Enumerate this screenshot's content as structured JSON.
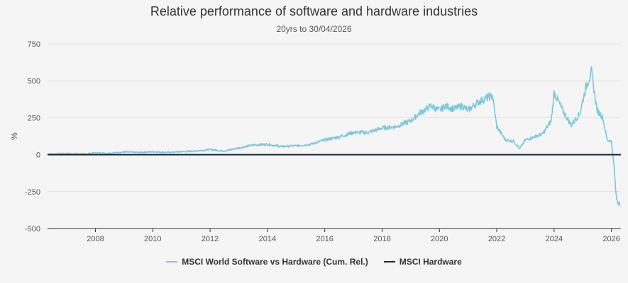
{
  "chart_data": {
    "type": "line",
    "title": "Relative performance of software and hardware industries",
    "subtitle": "20yrs to 30/04/2026",
    "ylabel": "%",
    "xlabel": "",
    "xlim": [
      2006.33,
      2026.33
    ],
    "ylim": [
      -500,
      750
    ],
    "yticks": [
      -500,
      -250,
      0,
      250,
      500,
      750
    ],
    "xticks": [
      2008,
      2010,
      2012,
      2014,
      2016,
      2018,
      2020,
      2022,
      2024,
      2026
    ],
    "grid": "horizontal",
    "legend": "bottom",
    "series": [
      {
        "name": "MSCI World Software vs Hardware (Cum. Rel.)",
        "color": "#7dc8dc",
        "x": [
          2006.33,
          2007.0,
          2007.6,
          2008.0,
          2008.5,
          2009.0,
          2009.5,
          2010.0,
          2010.5,
          2011.0,
          2011.5,
          2012.0,
          2012.5,
          2013.0,
          2013.5,
          2014.0,
          2014.5,
          2015.0,
          2015.5,
          2016.0,
          2016.5,
          2017.0,
          2017.5,
          2018.0,
          2018.5,
          2019.0,
          2019.3,
          2019.7,
          2020.0,
          2020.2,
          2020.5,
          2020.8,
          2021.0,
          2021.3,
          2021.6,
          2021.85,
          2022.0,
          2022.3,
          2022.6,
          2022.8,
          2023.0,
          2023.3,
          2023.6,
          2023.9,
          2024.0,
          2024.3,
          2024.6,
          2024.9,
          2025.1,
          2025.3,
          2025.5,
          2025.7,
          2025.85,
          2026.0,
          2026.1,
          2026.15,
          2026.2,
          2026.3
        ],
        "y": [
          5,
          8,
          5,
          12,
          10,
          18,
          15,
          20,
          15,
          20,
          25,
          35,
          25,
          45,
          65,
          70,
          55,
          60,
          70,
          100,
          120,
          150,
          150,
          180,
          190,
          230,
          280,
          330,
          300,
          330,
          310,
          330,
          300,
          350,
          380,
          400,
          190,
          100,
          90,
          40,
          100,
          120,
          140,
          230,
          420,
          300,
          200,
          280,
          450,
          560,
          300,
          250,
          100,
          90,
          -100,
          -250,
          -300,
          -350
        ]
      },
      {
        "name": "MSCI Hardware",
        "color": "#1b2a38",
        "x": [
          2006.33,
          2026.33
        ],
        "y": [
          0,
          0
        ]
      }
    ]
  }
}
